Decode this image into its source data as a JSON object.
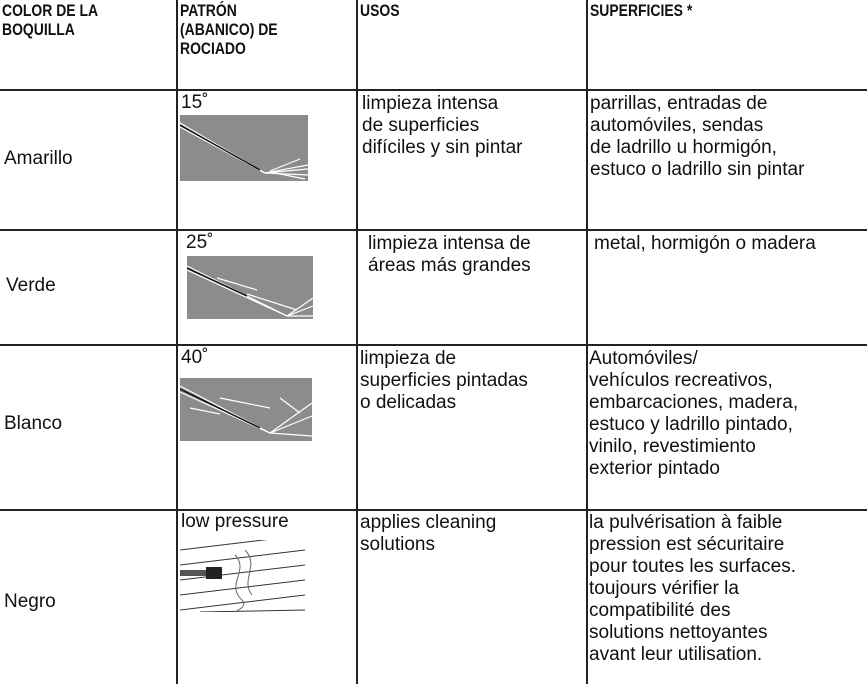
{
  "table": {
    "header": [
      [
        "COLOR DE LA",
        "BOQUILLA"
      ],
      [
        "PATRÓN",
        "(ABANICO) DE",
        "ROCIADO"
      ],
      [
        "USOS"
      ],
      [
        "SUPERFICIES *"
      ]
    ],
    "rows": [
      {
        "color": "Amarillo",
        "pattern": "15˚",
        "uses": [
          "limpieza intensa",
          "de superficies",
          "difíciles y sin pintar"
        ],
        "surfaces": [
          "parrillas, entradas de",
          "automóviles, sendas",
          "de ladrillo u hormigón,",
          "estuco o ladrillo sin pintar"
        ]
      },
      {
        "color": "Verde",
        "pattern": "25˚",
        "uses": [
          "limpieza intensa de",
          "áreas más grandes"
        ],
        "surfaces": [
          "metal, hormigón o madera"
        ]
      },
      {
        "color": "Blanco",
        "pattern": "40˚",
        "uses": [
          "limpieza de",
          "superficies pintadas",
          "o delicadas"
        ],
        "surfaces": [
          "Automóviles/",
          "vehículos recreativos,",
          "embarcaciones, madera,",
          "estuco y ladrillo pintado,",
          "vinilo, revestimiento",
          "exterior pintado"
        ]
      },
      {
        "color": "Negro",
        "pattern": "low pressure",
        "uses": [
          "applies cleaning",
          "solutions"
        ],
        "surfaces": [
          "la pulvérisation à faible",
          "pression est sécuritaire",
          "pour toutes les surfaces.",
          "toujours vérifier la",
          "compatibilité des",
          "solutions nettoyantes",
          "avant leur utilisation."
        ]
      }
    ]
  }
}
